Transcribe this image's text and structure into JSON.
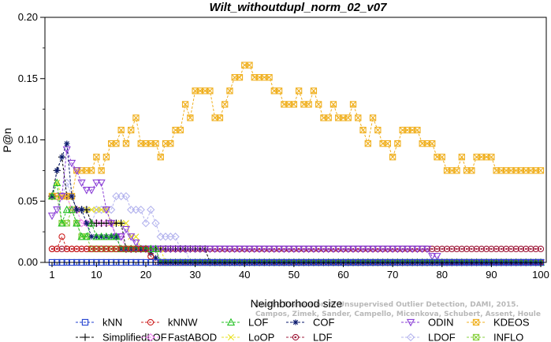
{
  "chart_data": {
    "type": "line",
    "title": "Wilt_withoutdupl_norm_02_v07",
    "xlabel": "Neighborhood size",
    "ylabel": "P@n",
    "xlim": [
      1,
      100
    ],
    "ylim": [
      0,
      0.2
    ],
    "xticks": [
      1,
      10,
      20,
      30,
      40,
      50,
      60,
      70,
      80,
      90,
      100
    ],
    "yticks": [
      "0.00",
      "0.05",
      "0.10",
      "0.15",
      "0.20"
    ],
    "grid": false,
    "legend_position": "bottom",
    "watermark": [
      "Campos, Zimek, Sander, Campello, Micenkova, Schubert, Assent, Houle",
      "On the Evaluation of Unsupervised Outlier Detection, DAMI, 2015."
    ],
    "series": [
      {
        "name": "kNN",
        "color": "#1f3fd0",
        "marker": "square",
        "points": [
          [
            1,
            0
          ],
          [
            100,
            0
          ]
        ]
      },
      {
        "name": "kNNW",
        "color": "#cc2020",
        "marker": "circle",
        "points": [
          [
            1,
            0.011
          ],
          [
            2,
            0.011
          ],
          [
            3,
            0.021
          ],
          [
            4,
            0.011
          ],
          [
            5,
            0.011
          ],
          [
            10,
            0.011
          ],
          [
            20,
            0.011
          ],
          [
            21,
            0.005
          ],
          [
            22,
            0
          ],
          [
            100,
            0
          ]
        ]
      },
      {
        "name": "LOF",
        "color": "#22c022",
        "marker": "triangle",
        "points": [
          [
            1,
            0.054
          ],
          [
            2,
            0.065
          ],
          [
            3,
            0.032
          ],
          [
            4,
            0.043
          ],
          [
            5,
            0.043
          ],
          [
            6,
            0.032
          ],
          [
            7,
            0.021
          ],
          [
            8,
            0.021
          ],
          [
            9,
            0.032
          ],
          [
            10,
            0.021
          ],
          [
            11,
            0.021
          ],
          [
            12,
            0.021
          ],
          [
            13,
            0.021
          ],
          [
            14,
            0.021
          ],
          [
            15,
            0.011
          ],
          [
            20,
            0.011
          ],
          [
            22,
            0.011
          ],
          [
            23,
            0
          ],
          [
            100,
            0
          ]
        ]
      },
      {
        "name": "COF",
        "color": "#0a1a6e",
        "marker": "asterisk",
        "points": [
          [
            1,
            0.054
          ],
          [
            2,
            0.075
          ],
          [
            3,
            0.086
          ],
          [
            4,
            0.097
          ],
          [
            5,
            0.054
          ],
          [
            6,
            0.043
          ],
          [
            7,
            0.043
          ],
          [
            8,
            0.032
          ],
          [
            9,
            0.021
          ],
          [
            10,
            0.021
          ],
          [
            11,
            0.021
          ],
          [
            12,
            0.021
          ],
          [
            13,
            0.021
          ],
          [
            14,
            0.021
          ],
          [
            15,
            0.011
          ],
          [
            16,
            0.011
          ],
          [
            17,
            0.011
          ],
          [
            20,
            0.011
          ],
          [
            23,
            0
          ],
          [
            100,
            0
          ]
        ]
      },
      {
        "name": "ODIN",
        "color": "#8a3fd6",
        "marker": "triangle-down",
        "points": [
          [
            1,
            0.038
          ],
          [
            2,
            0.043
          ],
          [
            3,
            0.054
          ],
          [
            4,
            0.092
          ],
          [
            5,
            0.081
          ],
          [
            6,
            0.075
          ],
          [
            7,
            0.065
          ],
          [
            8,
            0.059
          ],
          [
            9,
            0.059
          ],
          [
            10,
            0.065
          ],
          [
            11,
            0.065
          ],
          [
            12,
            0.043
          ],
          [
            13,
            0.032
          ],
          [
            14,
            0.021
          ],
          [
            15,
            0.021
          ],
          [
            16,
            0.027
          ],
          [
            17,
            0.021
          ],
          [
            18,
            0.016
          ],
          [
            19,
            0.011
          ],
          [
            20,
            0.011
          ],
          [
            77,
            0.011
          ],
          [
            78,
            0.005
          ],
          [
            79,
            0.005
          ],
          [
            80,
            0
          ],
          [
            100,
            0
          ]
        ]
      },
      {
        "name": "KDEOS",
        "color": "#f0b020",
        "marker": "square-x",
        "points": [
          [
            1,
            0.054
          ],
          [
            2,
            0.054
          ],
          [
            3,
            0.054
          ],
          [
            4,
            0.054
          ],
          [
            5,
            0.054
          ],
          [
            6,
            0.075
          ],
          [
            7,
            0.075
          ],
          [
            8,
            0.075
          ],
          [
            9,
            0.075
          ],
          [
            10,
            0.086
          ],
          [
            11,
            0.075
          ],
          [
            12,
            0.086
          ],
          [
            13,
            0.097
          ],
          [
            14,
            0.097
          ],
          [
            15,
            0.108
          ],
          [
            16,
            0.097
          ],
          [
            17,
            0.108
          ],
          [
            18,
            0.118
          ],
          [
            19,
            0.097
          ],
          [
            20,
            0.097
          ],
          [
            21,
            0.097
          ],
          [
            22,
            0.097
          ],
          [
            23,
            0.086
          ],
          [
            24,
            0.097
          ],
          [
            25,
            0.097
          ],
          [
            26,
            0.108
          ],
          [
            27,
            0.108
          ],
          [
            28,
            0.129
          ],
          [
            29,
            0.118
          ],
          [
            30,
            0.14
          ],
          [
            31,
            0.14
          ],
          [
            32,
            0.14
          ],
          [
            33,
            0.14
          ],
          [
            34,
            0.118
          ],
          [
            35,
            0.118
          ],
          [
            36,
            0.129
          ],
          [
            37,
            0.14
          ],
          [
            38,
            0.151
          ],
          [
            39,
            0.151
          ],
          [
            40,
            0.161
          ],
          [
            41,
            0.161
          ],
          [
            42,
            0.151
          ],
          [
            43,
            0.151
          ],
          [
            44,
            0.151
          ],
          [
            45,
            0.151
          ],
          [
            46,
            0.14
          ],
          [
            47,
            0.14
          ],
          [
            48,
            0.129
          ],
          [
            49,
            0.129
          ],
          [
            50,
            0.129
          ],
          [
            51,
            0.14
          ],
          [
            52,
            0.129
          ],
          [
            53,
            0.129
          ],
          [
            54,
            0.14
          ],
          [
            55,
            0.129
          ],
          [
            56,
            0.118
          ],
          [
            57,
            0.118
          ],
          [
            58,
            0.129
          ],
          [
            59,
            0.118
          ],
          [
            60,
            0.118
          ],
          [
            61,
            0.118
          ],
          [
            62,
            0.129
          ],
          [
            63,
            0.118
          ],
          [
            64,
            0.108
          ],
          [
            65,
            0.097
          ],
          [
            66,
            0.118
          ],
          [
            67,
            0.108
          ],
          [
            68,
            0.097
          ],
          [
            69,
            0.097
          ],
          [
            70,
            0.086
          ],
          [
            71,
            0.097
          ],
          [
            72,
            0.108
          ],
          [
            73,
            0.108
          ],
          [
            74,
            0.108
          ],
          [
            75,
            0.108
          ],
          [
            76,
            0.097
          ],
          [
            77,
            0.097
          ],
          [
            78,
            0.097
          ],
          [
            79,
            0.086
          ],
          [
            80,
            0.086
          ],
          [
            81,
            0.075
          ],
          [
            82,
            0.075
          ],
          [
            83,
            0.075
          ],
          [
            84,
            0.086
          ],
          [
            85,
            0.075
          ],
          [
            86,
            0.075
          ],
          [
            87,
            0.086
          ],
          [
            88,
            0.086
          ],
          [
            89,
            0.086
          ],
          [
            90,
            0.086
          ],
          [
            91,
            0.075
          ],
          [
            92,
            0.075
          ],
          [
            93,
            0.075
          ],
          [
            94,
            0.075
          ],
          [
            95,
            0.075
          ],
          [
            96,
            0.075
          ],
          [
            97,
            0.075
          ],
          [
            98,
            0.075
          ],
          [
            99,
            0.075
          ],
          [
            100,
            0.075
          ]
        ]
      },
      {
        "name": "SimplifiedLOF",
        "color": "#000000",
        "marker": "plus",
        "points": [
          [
            1,
            0.054
          ],
          [
            2,
            0.075
          ],
          [
            3,
            0.086
          ],
          [
            4,
            0.054
          ],
          [
            5,
            0.054
          ],
          [
            6,
            0.043
          ],
          [
            7,
            0.043
          ],
          [
            8,
            0.043
          ],
          [
            9,
            0.032
          ],
          [
            10,
            0.032
          ],
          [
            11,
            0.032
          ],
          [
            12,
            0.032
          ],
          [
            13,
            0.032
          ],
          [
            14,
            0.032
          ],
          [
            15,
            0.032
          ],
          [
            16,
            0.011
          ],
          [
            17,
            0.011
          ],
          [
            18,
            0.011
          ],
          [
            19,
            0.011
          ],
          [
            20,
            0.011
          ],
          [
            21,
            0.011
          ],
          [
            22,
            0.011
          ],
          [
            23,
            0.011
          ],
          [
            24,
            0.011
          ],
          [
            25,
            0.011
          ],
          [
            26,
            0.011
          ],
          [
            27,
            0.011
          ],
          [
            28,
            0.011
          ],
          [
            29,
            0.011
          ],
          [
            30,
            0.011
          ],
          [
            31,
            0.011
          ],
          [
            32,
            0.011
          ],
          [
            33,
            0
          ],
          [
            100,
            0
          ]
        ]
      },
      {
        "name": "FastABOD",
        "color": "#f07ef0",
        "marker": "diamond",
        "points": [
          [
            1,
            0.054
          ],
          [
            2,
            0.054
          ],
          [
            3,
            0.054
          ],
          [
            4,
            0.054
          ],
          [
            5,
            0.043
          ],
          [
            6,
            0.043
          ],
          [
            7,
            0.032
          ],
          [
            8,
            0.032
          ],
          [
            9,
            0.032
          ],
          [
            10,
            0.032
          ],
          [
            11,
            0.032
          ],
          [
            12,
            0.032
          ],
          [
            13,
            0.032
          ],
          [
            14,
            0.021
          ],
          [
            15,
            0.021
          ],
          [
            16,
            0.011
          ],
          [
            20,
            0.011
          ],
          [
            22,
            0.011
          ],
          [
            23,
            0
          ],
          [
            100,
            0
          ]
        ]
      },
      {
        "name": "LoOP",
        "color": "#e8e020",
        "marker": "x",
        "points": [
          [
            1,
            0.054
          ],
          [
            2,
            0.065
          ],
          [
            3,
            0.054
          ],
          [
            4,
            0.054
          ],
          [
            5,
            0.043
          ],
          [
            6,
            0.043
          ],
          [
            7,
            0.043
          ],
          [
            8,
            0.043
          ],
          [
            9,
            0.043
          ],
          [
            10,
            0.043
          ],
          [
            11,
            0.043
          ],
          [
            12,
            0.043
          ],
          [
            13,
            0.032
          ],
          [
            14,
            0.032
          ],
          [
            15,
            0.032
          ],
          [
            16,
            0.032
          ],
          [
            17,
            0.021
          ],
          [
            18,
            0.021
          ],
          [
            19,
            0.011
          ],
          [
            20,
            0.011
          ],
          [
            23,
            0.011
          ],
          [
            24,
            0
          ],
          [
            100,
            0
          ]
        ]
      },
      {
        "name": "LDF",
        "color": "#a01c3c",
        "marker": "circle-dot",
        "points": [
          [
            1,
            0.011
          ],
          [
            100,
            0.011
          ]
        ]
      },
      {
        "name": "LDOF",
        "color": "#b4b4ee",
        "marker": "diamond",
        "points": [
          [
            1,
            0.054
          ],
          [
            2,
            0.054
          ],
          [
            3,
            0.054
          ],
          [
            4,
            0.065
          ],
          [
            5,
            0.054
          ],
          [
            6,
            0.043
          ],
          [
            7,
            0.043
          ],
          [
            8,
            0.043
          ],
          [
            9,
            0.032
          ],
          [
            10,
            0.043
          ],
          [
            11,
            0.043
          ],
          [
            12,
            0.043
          ],
          [
            13,
            0.043
          ],
          [
            14,
            0.054
          ],
          [
            15,
            0.054
          ],
          [
            16,
            0.054
          ],
          [
            17,
            0.043
          ],
          [
            18,
            0.043
          ],
          [
            19,
            0.043
          ],
          [
            20,
            0.032
          ],
          [
            21,
            0.043
          ],
          [
            22,
            0.032
          ],
          [
            23,
            0.021
          ],
          [
            24,
            0.021
          ],
          [
            25,
            0.021
          ],
          [
            26,
            0.021
          ],
          [
            27,
            0.011
          ],
          [
            28,
            0.011
          ],
          [
            29,
            0
          ],
          [
            100,
            0
          ]
        ]
      },
      {
        "name": "INFLO",
        "color": "#88d040",
        "marker": "square-x",
        "points": [
          [
            1,
            0.054
          ],
          [
            2,
            0.054
          ],
          [
            3,
            0.032
          ],
          [
            4,
            0.032
          ],
          [
            5,
            0.043
          ],
          [
            6,
            0.032
          ],
          [
            7,
            0.021
          ],
          [
            8,
            0.021
          ],
          [
            9,
            0.011
          ],
          [
            10,
            0.011
          ],
          [
            20,
            0.011
          ],
          [
            22,
            0.011
          ],
          [
            23,
            0
          ],
          [
            100,
            0
          ]
        ]
      }
    ]
  }
}
